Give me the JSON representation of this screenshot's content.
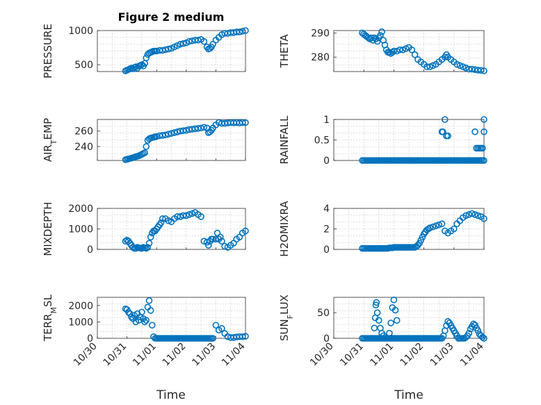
{
  "figure": {
    "title": "Figure 2 medium"
  },
  "colors": {
    "marker": "#0072BD",
    "axis": "#262626",
    "grid": "#bfbfbf"
  },
  "x_ticks": [
    "10/30",
    "10/31",
    "11/01",
    "11/02",
    "11/03",
    "11/04"
  ],
  "xlabel": "Time",
  "chart_data": [
    {
      "type": "scatter",
      "ylabel": "PRESSURE",
      "ylim": [
        400,
        1000
      ],
      "yticks": [
        "500",
        "1000"
      ],
      "ytick_values": [
        500,
        1000
      ],
      "xlim": [
        0,
        5
      ],
      "grid": true,
      "show_xticks": false,
      "title": "Figure 2 medium",
      "x": [
        0.95,
        1.0,
        1.05,
        1.1,
        1.15,
        1.2,
        1.25,
        1.3,
        1.35,
        1.4,
        1.45,
        1.5,
        1.55,
        1.6,
        1.65,
        1.7,
        1.75,
        1.8,
        1.85,
        1.9,
        1.95,
        2.0,
        2.1,
        2.2,
        2.3,
        2.4,
        2.5,
        2.6,
        2.7,
        2.8,
        2.9,
        3.0,
        3.1,
        3.2,
        3.3,
        3.4,
        3.5,
        3.6,
        3.7,
        3.75,
        3.8,
        3.85,
        3.9,
        4.0,
        4.1,
        4.2,
        4.3,
        4.4,
        4.5,
        4.6,
        4.7,
        4.8,
        4.9,
        5.0
      ],
      "y": [
        410,
        420,
        430,
        440,
        450,
        440,
        460,
        470,
        450,
        480,
        490,
        500,
        480,
        520,
        600,
        650,
        670,
        680,
        690,
        700,
        700,
        700,
        710,
        710,
        720,
        730,
        740,
        760,
        780,
        800,
        810,
        820,
        840,
        850,
        860,
        860,
        870,
        840,
        760,
        730,
        740,
        760,
        800,
        860,
        900,
        940,
        960,
        960,
        970,
        970,
        980,
        980,
        990,
        1000
      ]
    },
    {
      "type": "scatter",
      "ylabel": "THETA",
      "ylim": [
        274,
        291
      ],
      "yticks": [
        "280",
        "290"
      ],
      "ytick_values": [
        280,
        290
      ],
      "xlim": [
        0,
        5
      ],
      "grid": true,
      "show_xticks": false,
      "x": [
        0.95,
        1.0,
        1.05,
        1.1,
        1.15,
        1.2,
        1.25,
        1.3,
        1.35,
        1.4,
        1.45,
        1.5,
        1.55,
        1.6,
        1.65,
        1.7,
        1.75,
        1.8,
        1.85,
        1.9,
        1.95,
        2.0,
        2.1,
        2.2,
        2.3,
        2.4,
        2.5,
        2.6,
        2.7,
        2.8,
        2.9,
        3.0,
        3.1,
        3.2,
        3.3,
        3.4,
        3.5,
        3.6,
        3.7,
        3.75,
        3.8,
        3.9,
        4.0,
        4.1,
        4.2,
        4.3,
        4.4,
        4.5,
        4.6,
        4.7,
        4.8,
        4.9,
        5.0
      ],
      "y": [
        290,
        289.5,
        289,
        288.5,
        288,
        287.5,
        288,
        287,
        288,
        287.5,
        286.5,
        288,
        289,
        290.5,
        287,
        285,
        283,
        282,
        282,
        281.5,
        282,
        282.5,
        282.5,
        283,
        283,
        283.5,
        284,
        283,
        281,
        279,
        278,
        277,
        276,
        276,
        276.5,
        277,
        278,
        279,
        280,
        281,
        280,
        279,
        278,
        277,
        276.5,
        276,
        275.5,
        275,
        275,
        274.8,
        274.6,
        274.5,
        274.3
      ]
    },
    {
      "type": "scatter",
      "ylabel": "AIR_TEMP",
      "ylim": [
        222,
        275
      ],
      "yticks": [
        "240",
        "260"
      ],
      "ytick_values": [
        240,
        260
      ],
      "xlim": [
        0,
        5
      ],
      "grid": true,
      "show_xticks": false,
      "x": [
        0.95,
        1.0,
        1.05,
        1.1,
        1.15,
        1.2,
        1.25,
        1.3,
        1.35,
        1.4,
        1.45,
        1.5,
        1.55,
        1.6,
        1.65,
        1.7,
        1.75,
        1.8,
        1.85,
        1.9,
        1.95,
        2.0,
        2.1,
        2.2,
        2.3,
        2.4,
        2.5,
        2.6,
        2.7,
        2.8,
        2.9,
        3.0,
        3.1,
        3.2,
        3.3,
        3.4,
        3.5,
        3.6,
        3.7,
        3.75,
        3.8,
        3.85,
        3.9,
        4.0,
        4.1,
        4.2,
        4.3,
        4.4,
        4.5,
        4.6,
        4.7,
        4.8,
        4.9,
        5.0
      ],
      "y": [
        223,
        223.5,
        224,
        224.5,
        225,
        225.5,
        226,
        227,
        227.5,
        228,
        229,
        230,
        231,
        232,
        240,
        248,
        250,
        251,
        251.5,
        252,
        252.5,
        253,
        254,
        254.5,
        255,
        256,
        257,
        258,
        259,
        260,
        260.5,
        261,
        262,
        262.5,
        263,
        263.5,
        264,
        265,
        264,
        258,
        259,
        261,
        264,
        268,
        271,
        270,
        270,
        270.5,
        271,
        270.8,
        271,
        270.5,
        271,
        271
      ]
    },
    {
      "type": "scatter",
      "ylabel": "RAINFALL",
      "ylim": [
        0,
        1
      ],
      "yticks": [
        "0",
        "0.5",
        "1"
      ],
      "ytick_values": [
        0,
        0.5,
        1
      ],
      "xlim": [
        0,
        5
      ],
      "grid": true,
      "show_xticks": false,
      "x": [
        0.95,
        1.0,
        1.05,
        1.1,
        1.15,
        1.2,
        1.25,
        1.3,
        1.35,
        1.4,
        1.45,
        1.5,
        1.55,
        1.6,
        1.65,
        1.7,
        1.75,
        1.8,
        1.85,
        1.9,
        1.95,
        2.0,
        2.05,
        2.1,
        2.15,
        2.2,
        2.25,
        2.3,
        2.35,
        2.4,
        2.45,
        2.5,
        2.55,
        2.6,
        2.65,
        2.7,
        2.75,
        2.8,
        2.85,
        2.9,
        2.95,
        3.0,
        3.05,
        3.1,
        3.15,
        3.2,
        3.25,
        3.3,
        3.35,
        3.4,
        3.45,
        3.5,
        3.55,
        3.6,
        3.65,
        3.7,
        3.75,
        3.8,
        3.85,
        3.9,
        3.95,
        4.0,
        4.05,
        4.1,
        4.15,
        4.2,
        4.25,
        4.3,
        4.35,
        4.4,
        4.45,
        4.5,
        4.55,
        4.6,
        4.65,
        4.7,
        4.75,
        4.8,
        4.85,
        4.9,
        4.95,
        5.0,
        3.6,
        3.63,
        3.7,
        3.75,
        3.8,
        4.7,
        4.75,
        4.8,
        4.85,
        4.9,
        4.95,
        5.0,
        5.0
      ],
      "y": [
        0,
        0,
        0,
        0,
        0,
        0,
        0,
        0,
        0,
        0,
        0,
        0,
        0,
        0,
        0,
        0,
        0,
        0,
        0,
        0,
        0,
        0,
        0,
        0,
        0,
        0,
        0,
        0,
        0,
        0,
        0,
        0,
        0,
        0,
        0,
        0,
        0,
        0,
        0,
        0,
        0,
        0,
        0,
        0,
        0,
        0,
        0,
        0,
        0,
        0,
        0,
        0,
        0,
        0,
        0,
        0,
        0,
        0,
        0,
        0,
        0,
        0,
        0,
        0,
        0,
        0,
        0,
        0,
        0,
        0,
        0,
        0,
        0,
        0,
        0,
        0,
        0,
        0,
        0,
        0,
        0,
        0,
        0.7,
        0.7,
        1.0,
        0.6,
        0.6,
        0.7,
        0.3,
        0.3,
        0.3,
        0.3,
        0.3,
        0.7,
        1.0
      ]
    },
    {
      "type": "scatter",
      "ylabel": "MIXDEPTH",
      "ylim": [
        0,
        2000
      ],
      "yticks": [
        "0",
        "1000",
        "2000"
      ],
      "ytick_values": [
        0,
        1000,
        2000
      ],
      "xlim": [
        0,
        5
      ],
      "grid": true,
      "show_xticks": false,
      "x": [
        0.95,
        1.0,
        1.05,
        1.1,
        1.15,
        1.2,
        1.25,
        1.3,
        1.35,
        1.4,
        1.45,
        1.5,
        1.55,
        1.6,
        1.65,
        1.7,
        1.75,
        1.8,
        1.85,
        1.9,
        1.95,
        2.0,
        2.05,
        2.1,
        2.15,
        2.2,
        2.3,
        2.4,
        2.5,
        2.6,
        2.7,
        2.8,
        2.9,
        3.0,
        3.1,
        3.2,
        3.3,
        3.4,
        3.5,
        3.6,
        3.7,
        3.75,
        3.8,
        3.85,
        3.9,
        4.0,
        4.05,
        4.1,
        4.15,
        4.2,
        4.3,
        4.4,
        4.5,
        4.6,
        4.7,
        4.8,
        4.9,
        5.0
      ],
      "y": [
        400,
        450,
        400,
        300,
        200,
        100,
        50,
        50,
        100,
        80,
        60,
        50,
        100,
        80,
        50,
        100,
        300,
        600,
        800,
        900,
        900,
        1000,
        1100,
        1200,
        1300,
        1500,
        1500,
        1400,
        1350,
        1500,
        1600,
        1600,
        1650,
        1650,
        1700,
        1750,
        1800,
        1700,
        1600,
        400,
        350,
        200,
        400,
        500,
        500,
        500,
        800,
        500,
        600,
        400,
        150,
        100,
        200,
        300,
        500,
        600,
        800,
        900
      ]
    },
    {
      "type": "scatter",
      "ylabel": "H2OMIXRA",
      "ylim": [
        0,
        4
      ],
      "yticks": [
        "0",
        "2",
        "4"
      ],
      "ytick_values": [
        0,
        2,
        4
      ],
      "xlim": [
        0,
        5
      ],
      "grid": true,
      "show_xticks": false,
      "x": [
        0.95,
        1.0,
        1.05,
        1.1,
        1.15,
        1.2,
        1.25,
        1.3,
        1.35,
        1.4,
        1.45,
        1.5,
        1.55,
        1.6,
        1.65,
        1.7,
        1.75,
        1.8,
        1.85,
        1.9,
        1.95,
        2.0,
        2.05,
        2.1,
        2.15,
        2.2,
        2.25,
        2.3,
        2.35,
        2.4,
        2.45,
        2.5,
        2.55,
        2.6,
        2.65,
        2.7,
        2.75,
        2.8,
        2.85,
        2.9,
        2.95,
        3.0,
        3.05,
        3.1,
        3.15,
        3.2,
        3.3,
        3.4,
        3.5,
        3.6,
        3.7,
        3.8,
        3.9,
        4.0,
        4.1,
        4.2,
        4.3,
        4.4,
        4.5,
        4.6,
        4.7,
        4.8,
        4.9,
        5.0
      ],
      "y": [
        0.1,
        0.1,
        0.1,
        0.1,
        0.1,
        0.1,
        0.1,
        0.1,
        0.1,
        0.1,
        0.1,
        0.1,
        0.1,
        0.1,
        0.1,
        0.1,
        0.1,
        0.1,
        0.15,
        0.15,
        0.15,
        0.2,
        0.2,
        0.2,
        0.2,
        0.2,
        0.2,
        0.2,
        0.2,
        0.2,
        0.2,
        0.2,
        0.2,
        0.2,
        0.2,
        0.2,
        0.3,
        0.4,
        0.6,
        0.9,
        1.2,
        1.5,
        1.7,
        1.9,
        2.0,
        2.1,
        2.2,
        2.3,
        2.4,
        2.5,
        1.8,
        1.6,
        1.8,
        2.0,
        2.5,
        2.8,
        3.1,
        3.3,
        3.4,
        3.5,
        3.4,
        3.3,
        3.2,
        3.0
      ]
    },
    {
      "type": "scatter",
      "ylabel": "TERR_MSL",
      "ylim": [
        0,
        2500
      ],
      "yticks": [
        "0",
        "1000",
        "2000"
      ],
      "ytick_values": [
        0,
        1000,
        2000
      ],
      "xlim": [
        0,
        5
      ],
      "grid": true,
      "show_xticks": true,
      "x": [
        0.95,
        1.0,
        1.05,
        1.1,
        1.15,
        1.2,
        1.25,
        1.3,
        1.35,
        1.4,
        1.45,
        1.5,
        1.55,
        1.6,
        1.65,
        1.7,
        1.75,
        1.8,
        1.85,
        1.9,
        1.95,
        2.0,
        2.05,
        2.1,
        2.15,
        2.2,
        2.25,
        2.3,
        2.35,
        2.4,
        2.45,
        2.5,
        2.55,
        2.6,
        2.65,
        2.7,
        2.75,
        2.8,
        2.85,
        2.9,
        2.95,
        3.0,
        3.05,
        3.1,
        3.15,
        3.2,
        3.25,
        3.3,
        3.35,
        3.4,
        3.45,
        3.5,
        3.55,
        3.6,
        3.65,
        3.7,
        3.75,
        3.8,
        3.85,
        3.9,
        4.0,
        4.1,
        4.2,
        4.3,
        4.4,
        4.5,
        4.6,
        4.7,
        4.8,
        4.9,
        5.0
      ],
      "y": [
        1800,
        1750,
        1600,
        1500,
        1300,
        1200,
        1400,
        1000,
        1500,
        1100,
        1300,
        1600,
        1200,
        1000,
        1100,
        1900,
        2300,
        1700,
        800,
        100,
        0,
        0,
        0,
        0,
        0,
        0,
        0,
        0,
        0,
        0,
        0,
        0,
        0,
        0,
        0,
        0,
        0,
        0,
        0,
        0,
        0,
        0,
        0,
        0,
        0,
        0,
        0,
        0,
        0,
        0,
        0,
        0,
        0,
        0,
        0,
        0,
        0,
        0,
        0,
        0,
        800,
        500,
        600,
        300,
        100,
        50,
        50,
        80,
        100,
        100,
        120
      ]
    },
    {
      "type": "scatter",
      "ylabel": "SUN_FLUX",
      "ylim": [
        0,
        80
      ],
      "yticks": [
        "0",
        "50"
      ],
      "ytick_values": [
        0,
        50
      ],
      "xlim": [
        0,
        5
      ],
      "grid": true,
      "show_xticks": true,
      "x": [
        0.95,
        1.0,
        1.05,
        1.1,
        1.15,
        1.2,
        1.25,
        1.3,
        1.35,
        1.4,
        1.45,
        1.5,
        1.55,
        1.6,
        1.65,
        1.7,
        1.75,
        1.8,
        1.85,
        1.9,
        1.95,
        2.0,
        2.05,
        2.1,
        2.15,
        2.2,
        2.25,
        2.3,
        2.35,
        2.4,
        2.45,
        2.5,
        2.55,
        2.6,
        2.65,
        2.7,
        2.75,
        2.8,
        2.85,
        2.9,
        2.95,
        3.0,
        3.05,
        3.1,
        3.15,
        3.2,
        3.25,
        3.3,
        3.35,
        3.4,
        3.45,
        3.5,
        3.55,
        3.6,
        3.65,
        3.7,
        3.75,
        3.8,
        3.85,
        3.9,
        3.95,
        4.0,
        4.05,
        4.1,
        4.15,
        4.2,
        4.25,
        4.3,
        4.35,
        4.4,
        4.45,
        4.5,
        4.55,
        4.6,
        4.65,
        4.7,
        4.75,
        4.8,
        4.85,
        4.9,
        4.95,
        5.0,
        1.35,
        1.38,
        1.4,
        1.42,
        1.45,
        1.5,
        1.55,
        1.6,
        1.65,
        1.85,
        1.9,
        1.95,
        2.0,
        2.05,
        2.1
      ],
      "y": [
        0,
        0,
        0,
        0,
        0,
        0,
        0,
        0,
        0,
        0,
        0,
        0,
        0,
        0,
        0,
        0,
        0,
        0,
        0,
        0,
        0,
        0,
        0,
        0,
        0,
        0,
        0,
        0,
        0,
        0,
        0,
        0,
        0,
        0,
        0,
        0,
        0,
        0,
        0,
        0,
        0,
        0,
        0,
        0,
        0,
        0,
        0,
        0,
        0,
        0,
        0,
        0,
        0,
        0,
        5,
        15,
        25,
        33,
        30,
        25,
        20,
        15,
        10,
        5,
        0,
        0,
        0,
        0,
        0,
        2,
        5,
        10,
        18,
        23,
        28,
        26,
        20,
        15,
        8,
        5,
        2,
        0,
        20,
        40,
        65,
        70,
        50,
        35,
        20,
        10,
        5,
        10,
        30,
        60,
        75,
        55,
        35
      ]
    }
  ]
}
